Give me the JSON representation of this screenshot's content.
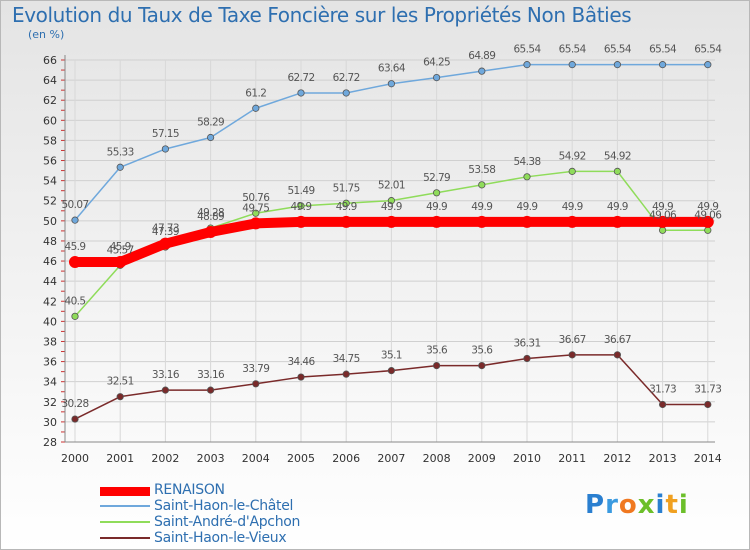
{
  "chart_data": {
    "type": "line",
    "title": "Evolution du Taux de Taxe Foncière sur les Propriétés Non Bâties",
    "subtitle": "(en %)",
    "xlabel": "",
    "ylabel": "",
    "x": [
      "2000",
      "2001",
      "2002",
      "2003",
      "2004",
      "2005",
      "2006",
      "2007",
      "2008",
      "2009",
      "2010",
      "2011",
      "2012",
      "2013",
      "2014"
    ],
    "yticks": [
      "28",
      "30",
      "32",
      "34",
      "36",
      "38",
      "40",
      "42",
      "44",
      "46",
      "48",
      "50",
      "52",
      "54",
      "56",
      "58",
      "60",
      "62",
      "64",
      "66"
    ],
    "ylim": [
      28,
      66
    ],
    "grid": true,
    "legend_position": "bottom-left",
    "series": [
      {
        "name": "RENAISON",
        "color": "#ff0000",
        "values": [
          45.9,
          45.9,
          47.73,
          48.89,
          49.75,
          49.9,
          49.9,
          49.9,
          49.9,
          49.9,
          49.9,
          49.9,
          49.9,
          49.9,
          49.9
        ],
        "labels": [
          "45.9",
          "45.9",
          "47.73",
          "48.89",
          "49.75",
          "49.9",
          "49.9",
          "49.9",
          "49.9",
          "49.9",
          "49.9",
          "49.9",
          "49.9",
          "49.9",
          "49.9"
        ]
      },
      {
        "name": "Saint-Haon-le-Châtel",
        "color": "#6fa8dc",
        "values": [
          50.07,
          55.33,
          57.15,
          58.29,
          61.2,
          62.72,
          62.72,
          63.64,
          64.25,
          64.89,
          65.54,
          65.54,
          65.54,
          65.54,
          65.54
        ],
        "labels": [
          "50.07",
          "55.33",
          "57.15",
          "58.29",
          "61.2",
          "62.72",
          "62.72",
          "63.64",
          "64.25",
          "64.89",
          "65.54",
          "65.54",
          "65.54",
          "65.54",
          "65.54"
        ]
      },
      {
        "name": "Saint-André-d'Apchon",
        "color": "#8fdc5a",
        "values": [
          40.5,
          45.57,
          47.39,
          49.28,
          50.76,
          51.49,
          51.75,
          52.01,
          52.79,
          53.58,
          54.38,
          54.92,
          54.92,
          49.06,
          49.06
        ],
        "labels": [
          "40.5",
          "45.57",
          "47.39",
          "49.28",
          "50.76",
          "51.49",
          "51.75",
          "52.01",
          "52.79",
          "53.58",
          "54.38",
          "54.92",
          "54.92",
          "49.06",
          "49.06"
        ]
      },
      {
        "name": "Saint-Haon-le-Vieux",
        "color": "#7a2a2a",
        "values": [
          30.28,
          32.51,
          33.16,
          33.16,
          33.79,
          34.46,
          34.75,
          35.1,
          35.6,
          35.6,
          36.31,
          36.67,
          36.67,
          31.73,
          31.73
        ],
        "labels": [
          "30.28",
          "32.51",
          "33.16",
          "33.16",
          "33.79",
          "34.46",
          "34.75",
          "35.1",
          "35.6",
          "35.6",
          "36.31",
          "36.67",
          "36.67",
          "31.73",
          "31.73"
        ]
      }
    ]
  },
  "logo": {
    "letters": [
      "P",
      "r",
      "o",
      "x",
      "i",
      "t",
      "i"
    ]
  }
}
